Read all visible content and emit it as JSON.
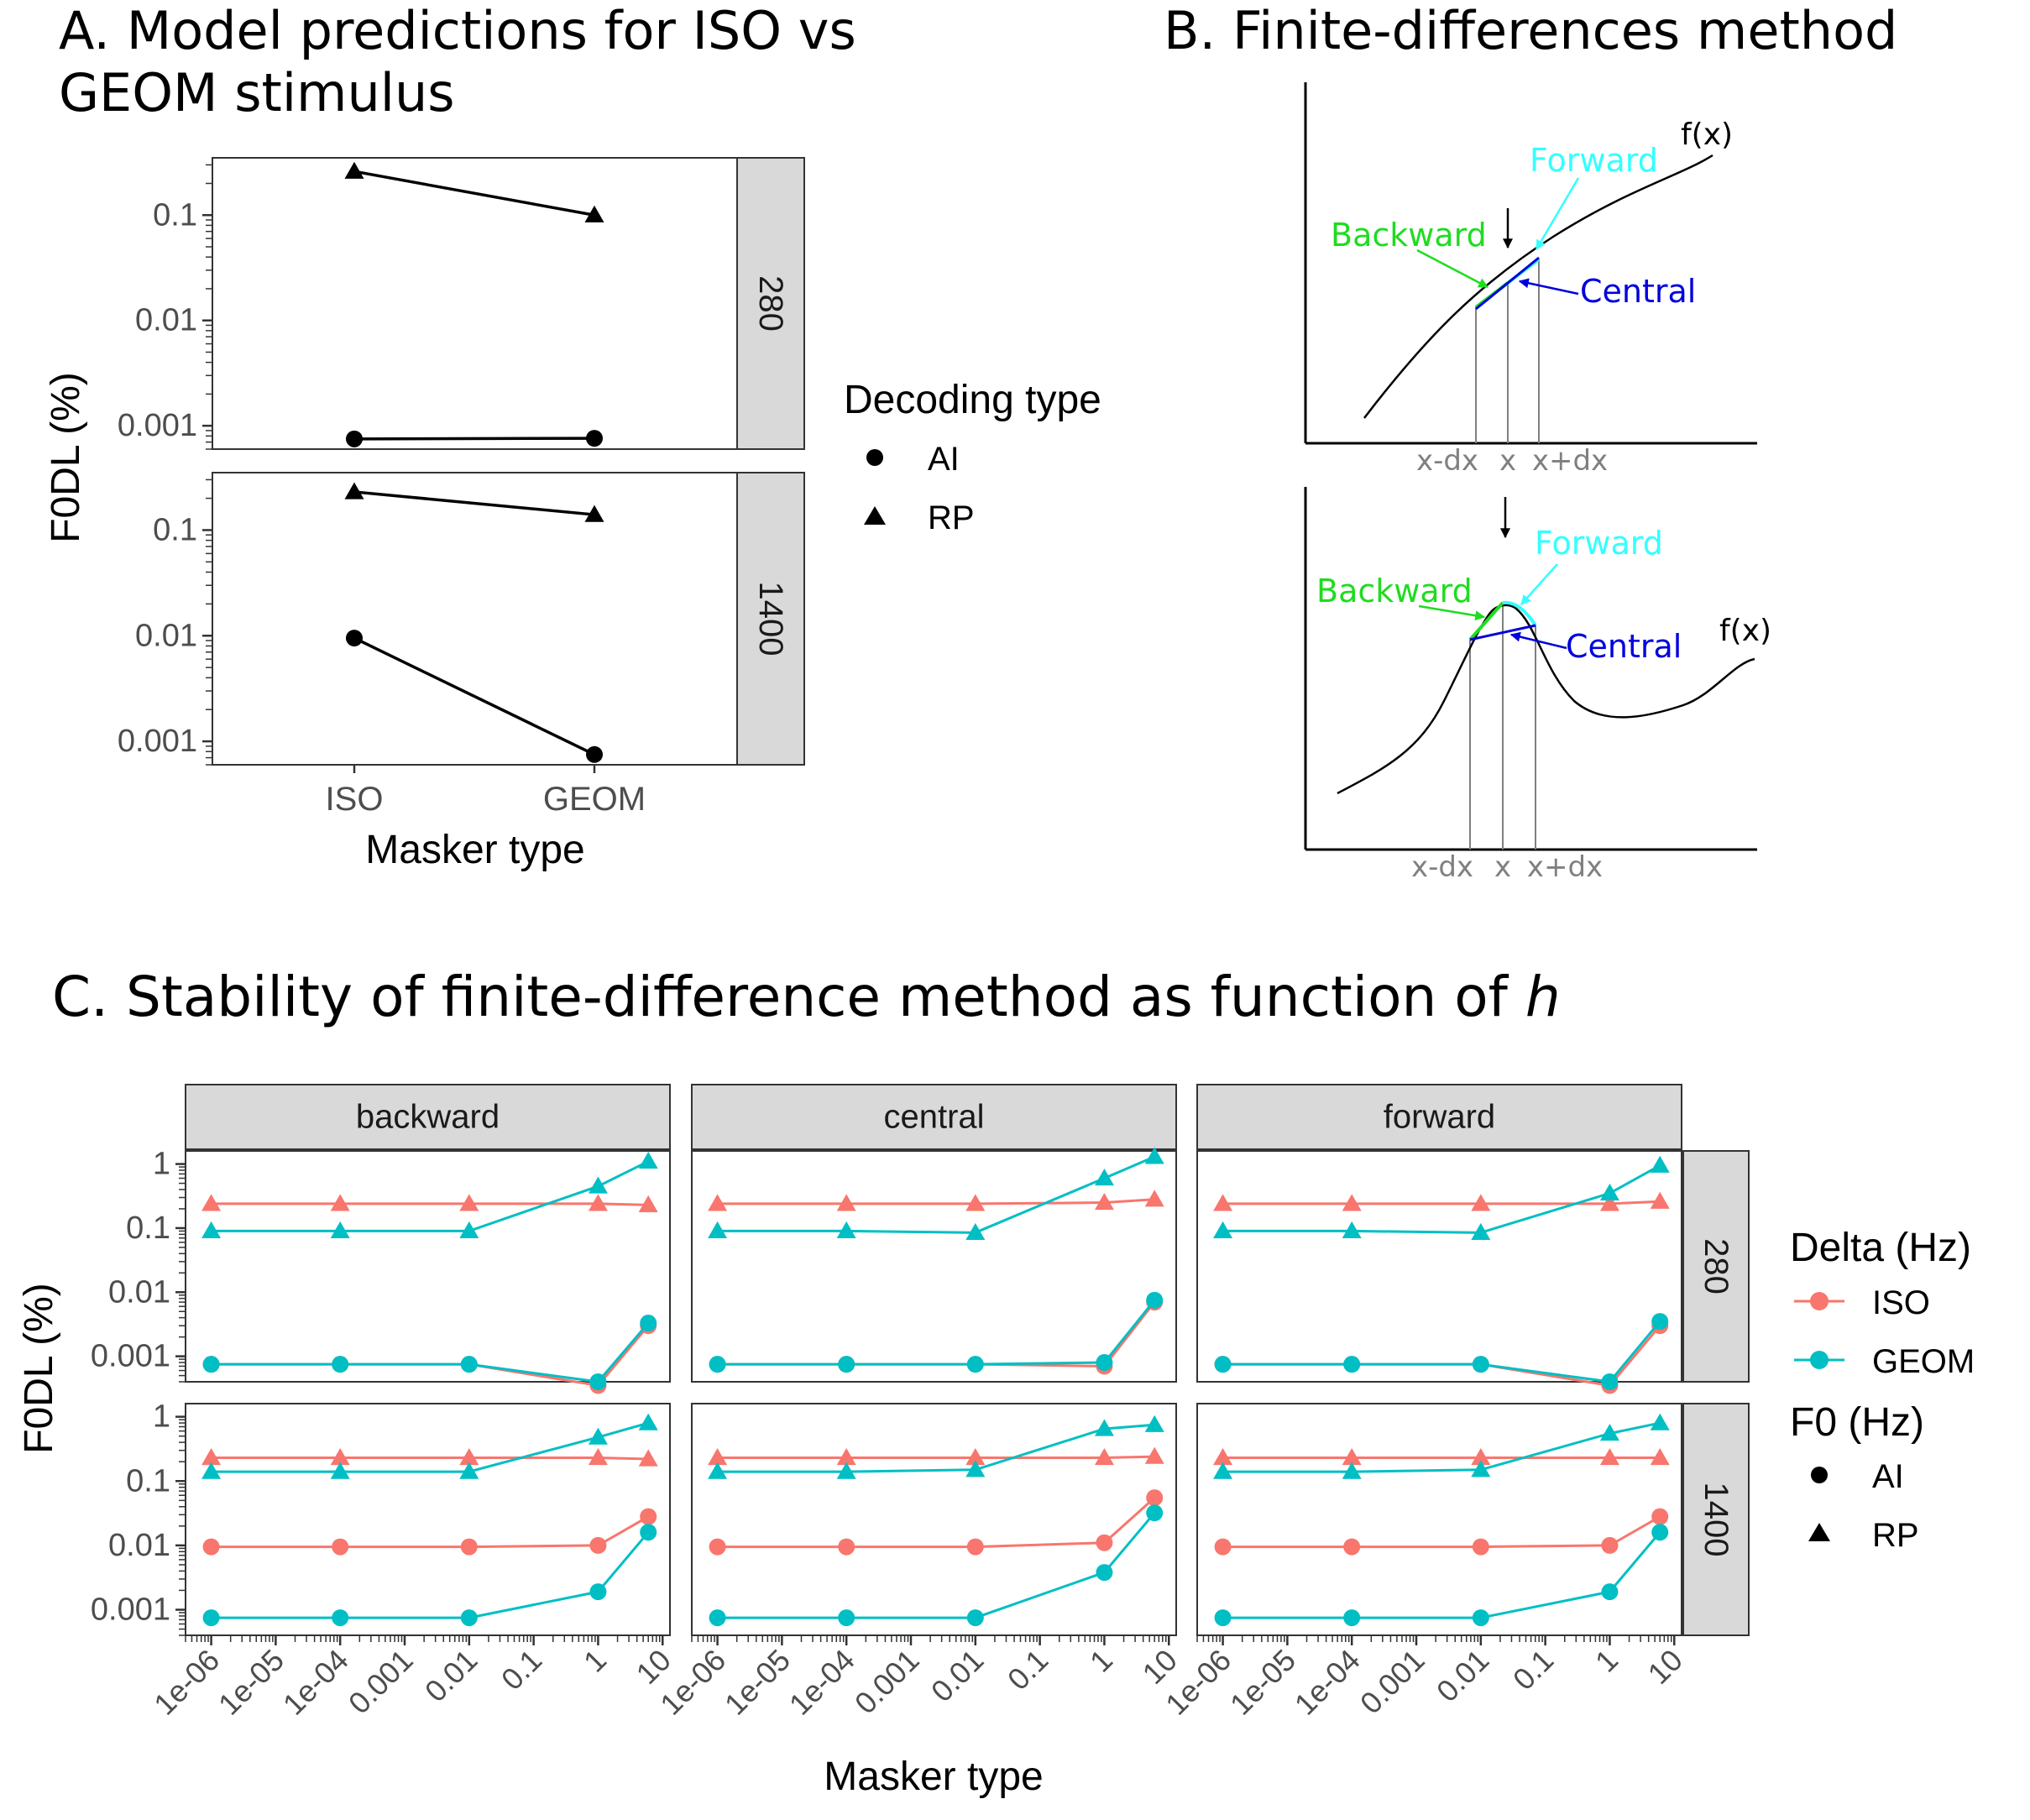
{
  "panel_a": {
    "title_line1": "A. Model predictions for ISO vs",
    "title_line2": "GEOM stimulus",
    "xlabel": "Masker type",
    "ylabel": "F0DL (%)",
    "legend_title": "Decoding type",
    "legend_items": [
      "AI",
      "RP"
    ]
  },
  "panel_b": {
    "title": "B. Finite-differences method",
    "fx_label": "f(x)",
    "forward_label": "Forward",
    "backward_label": "Backward",
    "central_label": "Central",
    "tick_labels": [
      "x-dx",
      "x",
      "x+dx"
    ],
    "colors": {
      "forward": "#33ffff",
      "backward": "#1fdc1f",
      "central": "#0000dd",
      "guide": "#808080"
    }
  },
  "panel_c": {
    "title_main": "C. Stability of finite-difference method as function of ",
    "title_italic": "h",
    "xlabel": "Masker type",
    "ylabel": "F0DL (%)",
    "legend_color_title": "Delta (Hz)",
    "legend_color_items": [
      "ISO",
      "GEOM"
    ],
    "legend_shape_title": "F0 (Hz)",
    "legend_shape_items": [
      "AI",
      "RP"
    ]
  },
  "chart_data": [
    {
      "type": "line",
      "panel": "A",
      "title": "A. Model predictions for ISO vs GEOM stimulus",
      "xlabel": "Masker type",
      "ylabel": "F0DL (%)",
      "y_scale": "log10",
      "ylim": [
        0.0006,
        0.35
      ],
      "y_ticks": [
        0.001,
        0.01,
        0.1
      ],
      "y_tick_labels": [
        "0.001",
        "0.01",
        "0.1"
      ],
      "categories": [
        "ISO",
        "GEOM"
      ],
      "facet_rows": [
        {
          "label": "280",
          "series": [
            {
              "name": "AI",
              "shape": "circle",
              "values": [
                0.00075,
                0.00076
              ]
            },
            {
              "name": "RP",
              "shape": "triangle",
              "values": [
                0.26,
                0.1
              ]
            }
          ]
        },
        {
          "label": "1400",
          "series": [
            {
              "name": "AI",
              "shape": "circle",
              "values": [
                0.0095,
                0.00075
              ]
            },
            {
              "name": "RP",
              "shape": "triangle",
              "values": [
                0.23,
                0.14
              ]
            }
          ]
        }
      ],
      "legend_title": "Decoding type",
      "legend_position": "right",
      "grid": false
    },
    {
      "type": "line",
      "panel": "C",
      "title": "C. Stability of finite-difference method as function of h",
      "xlabel": "Masker type",
      "ylabel": "F0DL (%)",
      "x_scale": "log10",
      "y_scale": "log10",
      "xlim": [
        4e-07,
        13
      ],
      "ylim": [
        0.0004,
        1.6
      ],
      "x_ticks": [
        1e-06,
        1e-05,
        0.0001,
        0.001,
        0.01,
        0.1,
        1,
        10
      ],
      "x_tick_labels": [
        "1e-06",
        "1e-05",
        "1e-04",
        "0.001",
        "0.01",
        "0.1",
        "1",
        "10"
      ],
      "y_ticks": [
        0.001,
        0.01,
        0.1,
        1
      ],
      "y_tick_labels": [
        "0.001",
        "0.01",
        "0.1",
        "1"
      ],
      "x": [
        1e-06,
        0.0001,
        0.01,
        1,
        6
      ],
      "facet_cols": [
        "backward",
        "central",
        "forward"
      ],
      "facet_rows": [
        "280",
        "1400"
      ],
      "colors": {
        "ISO": "#f8766d",
        "GEOM": "#00bfc4"
      },
      "panels": [
        {
          "col": "backward",
          "row": "280",
          "series": [
            {
              "delta": "ISO",
              "f0": "AI",
              "values": [
                0.00075,
                0.00075,
                0.00075,
                0.00035,
                0.003
              ]
            },
            {
              "delta": "GEOM",
              "f0": "AI",
              "values": [
                0.00075,
                0.00075,
                0.00075,
                0.0004,
                0.0033
              ]
            },
            {
              "delta": "ISO",
              "f0": "RP",
              "values": [
                0.24,
                0.24,
                0.24,
                0.24,
                0.23
              ]
            },
            {
              "delta": "GEOM",
              "f0": "RP",
              "values": [
                0.09,
                0.09,
                0.09,
                0.45,
                1.1
              ]
            }
          ]
        },
        {
          "col": "central",
          "row": "280",
          "series": [
            {
              "delta": "ISO",
              "f0": "AI",
              "values": [
                0.00075,
                0.00075,
                0.00075,
                0.0007,
                0.007
              ]
            },
            {
              "delta": "GEOM",
              "f0": "AI",
              "values": [
                0.00075,
                0.00075,
                0.00075,
                0.0008,
                0.0075
              ]
            },
            {
              "delta": "ISO",
              "f0": "RP",
              "values": [
                0.24,
                0.24,
                0.24,
                0.25,
                0.28
              ]
            },
            {
              "delta": "GEOM",
              "f0": "RP",
              "values": [
                0.09,
                0.09,
                0.085,
                0.6,
                1.3
              ]
            }
          ]
        },
        {
          "col": "forward",
          "row": "280",
          "series": [
            {
              "delta": "ISO",
              "f0": "AI",
              "values": [
                0.00075,
                0.00075,
                0.00075,
                0.00035,
                0.003
              ]
            },
            {
              "delta": "GEOM",
              "f0": "AI",
              "values": [
                0.00075,
                0.00075,
                0.00075,
                0.0004,
                0.0035
              ]
            },
            {
              "delta": "ISO",
              "f0": "RP",
              "values": [
                0.24,
                0.24,
                0.24,
                0.24,
                0.26
              ]
            },
            {
              "delta": "GEOM",
              "f0": "RP",
              "values": [
                0.09,
                0.09,
                0.085,
                0.35,
                0.95
              ]
            }
          ]
        },
        {
          "col": "backward",
          "row": "1400",
          "series": [
            {
              "delta": "ISO",
              "f0": "AI",
              "values": [
                0.0095,
                0.0095,
                0.0095,
                0.01,
                0.028
              ]
            },
            {
              "delta": "GEOM",
              "f0": "AI",
              "values": [
                0.00075,
                0.00075,
                0.00075,
                0.0019,
                0.016
              ]
            },
            {
              "delta": "ISO",
              "f0": "RP",
              "values": [
                0.23,
                0.23,
                0.23,
                0.23,
                0.22
              ]
            },
            {
              "delta": "GEOM",
              "f0": "RP",
              "values": [
                0.14,
                0.14,
                0.14,
                0.48,
                0.8
              ]
            }
          ]
        },
        {
          "col": "central",
          "row": "1400",
          "series": [
            {
              "delta": "ISO",
              "f0": "AI",
              "values": [
                0.0095,
                0.0095,
                0.0095,
                0.011,
                0.055
              ]
            },
            {
              "delta": "GEOM",
              "f0": "AI",
              "values": [
                0.00075,
                0.00075,
                0.00075,
                0.0038,
                0.032
              ]
            },
            {
              "delta": "ISO",
              "f0": "RP",
              "values": [
                0.23,
                0.23,
                0.23,
                0.23,
                0.24
              ]
            },
            {
              "delta": "GEOM",
              "f0": "RP",
              "values": [
                0.14,
                0.14,
                0.15,
                0.65,
                0.75
              ]
            }
          ]
        },
        {
          "col": "forward",
          "row": "1400",
          "series": [
            {
              "delta": "ISO",
              "f0": "AI",
              "values": [
                0.0095,
                0.0095,
                0.0095,
                0.01,
                0.028
              ]
            },
            {
              "delta": "GEOM",
              "f0": "AI",
              "values": [
                0.00075,
                0.00075,
                0.00075,
                0.0019,
                0.016
              ]
            },
            {
              "delta": "ISO",
              "f0": "RP",
              "values": [
                0.23,
                0.23,
                0.23,
                0.23,
                0.23
              ]
            },
            {
              "delta": "GEOM",
              "f0": "RP",
              "values": [
                0.14,
                0.14,
                0.15,
                0.55,
                0.8
              ]
            }
          ]
        }
      ],
      "legend_position": "right",
      "grid": false
    }
  ]
}
